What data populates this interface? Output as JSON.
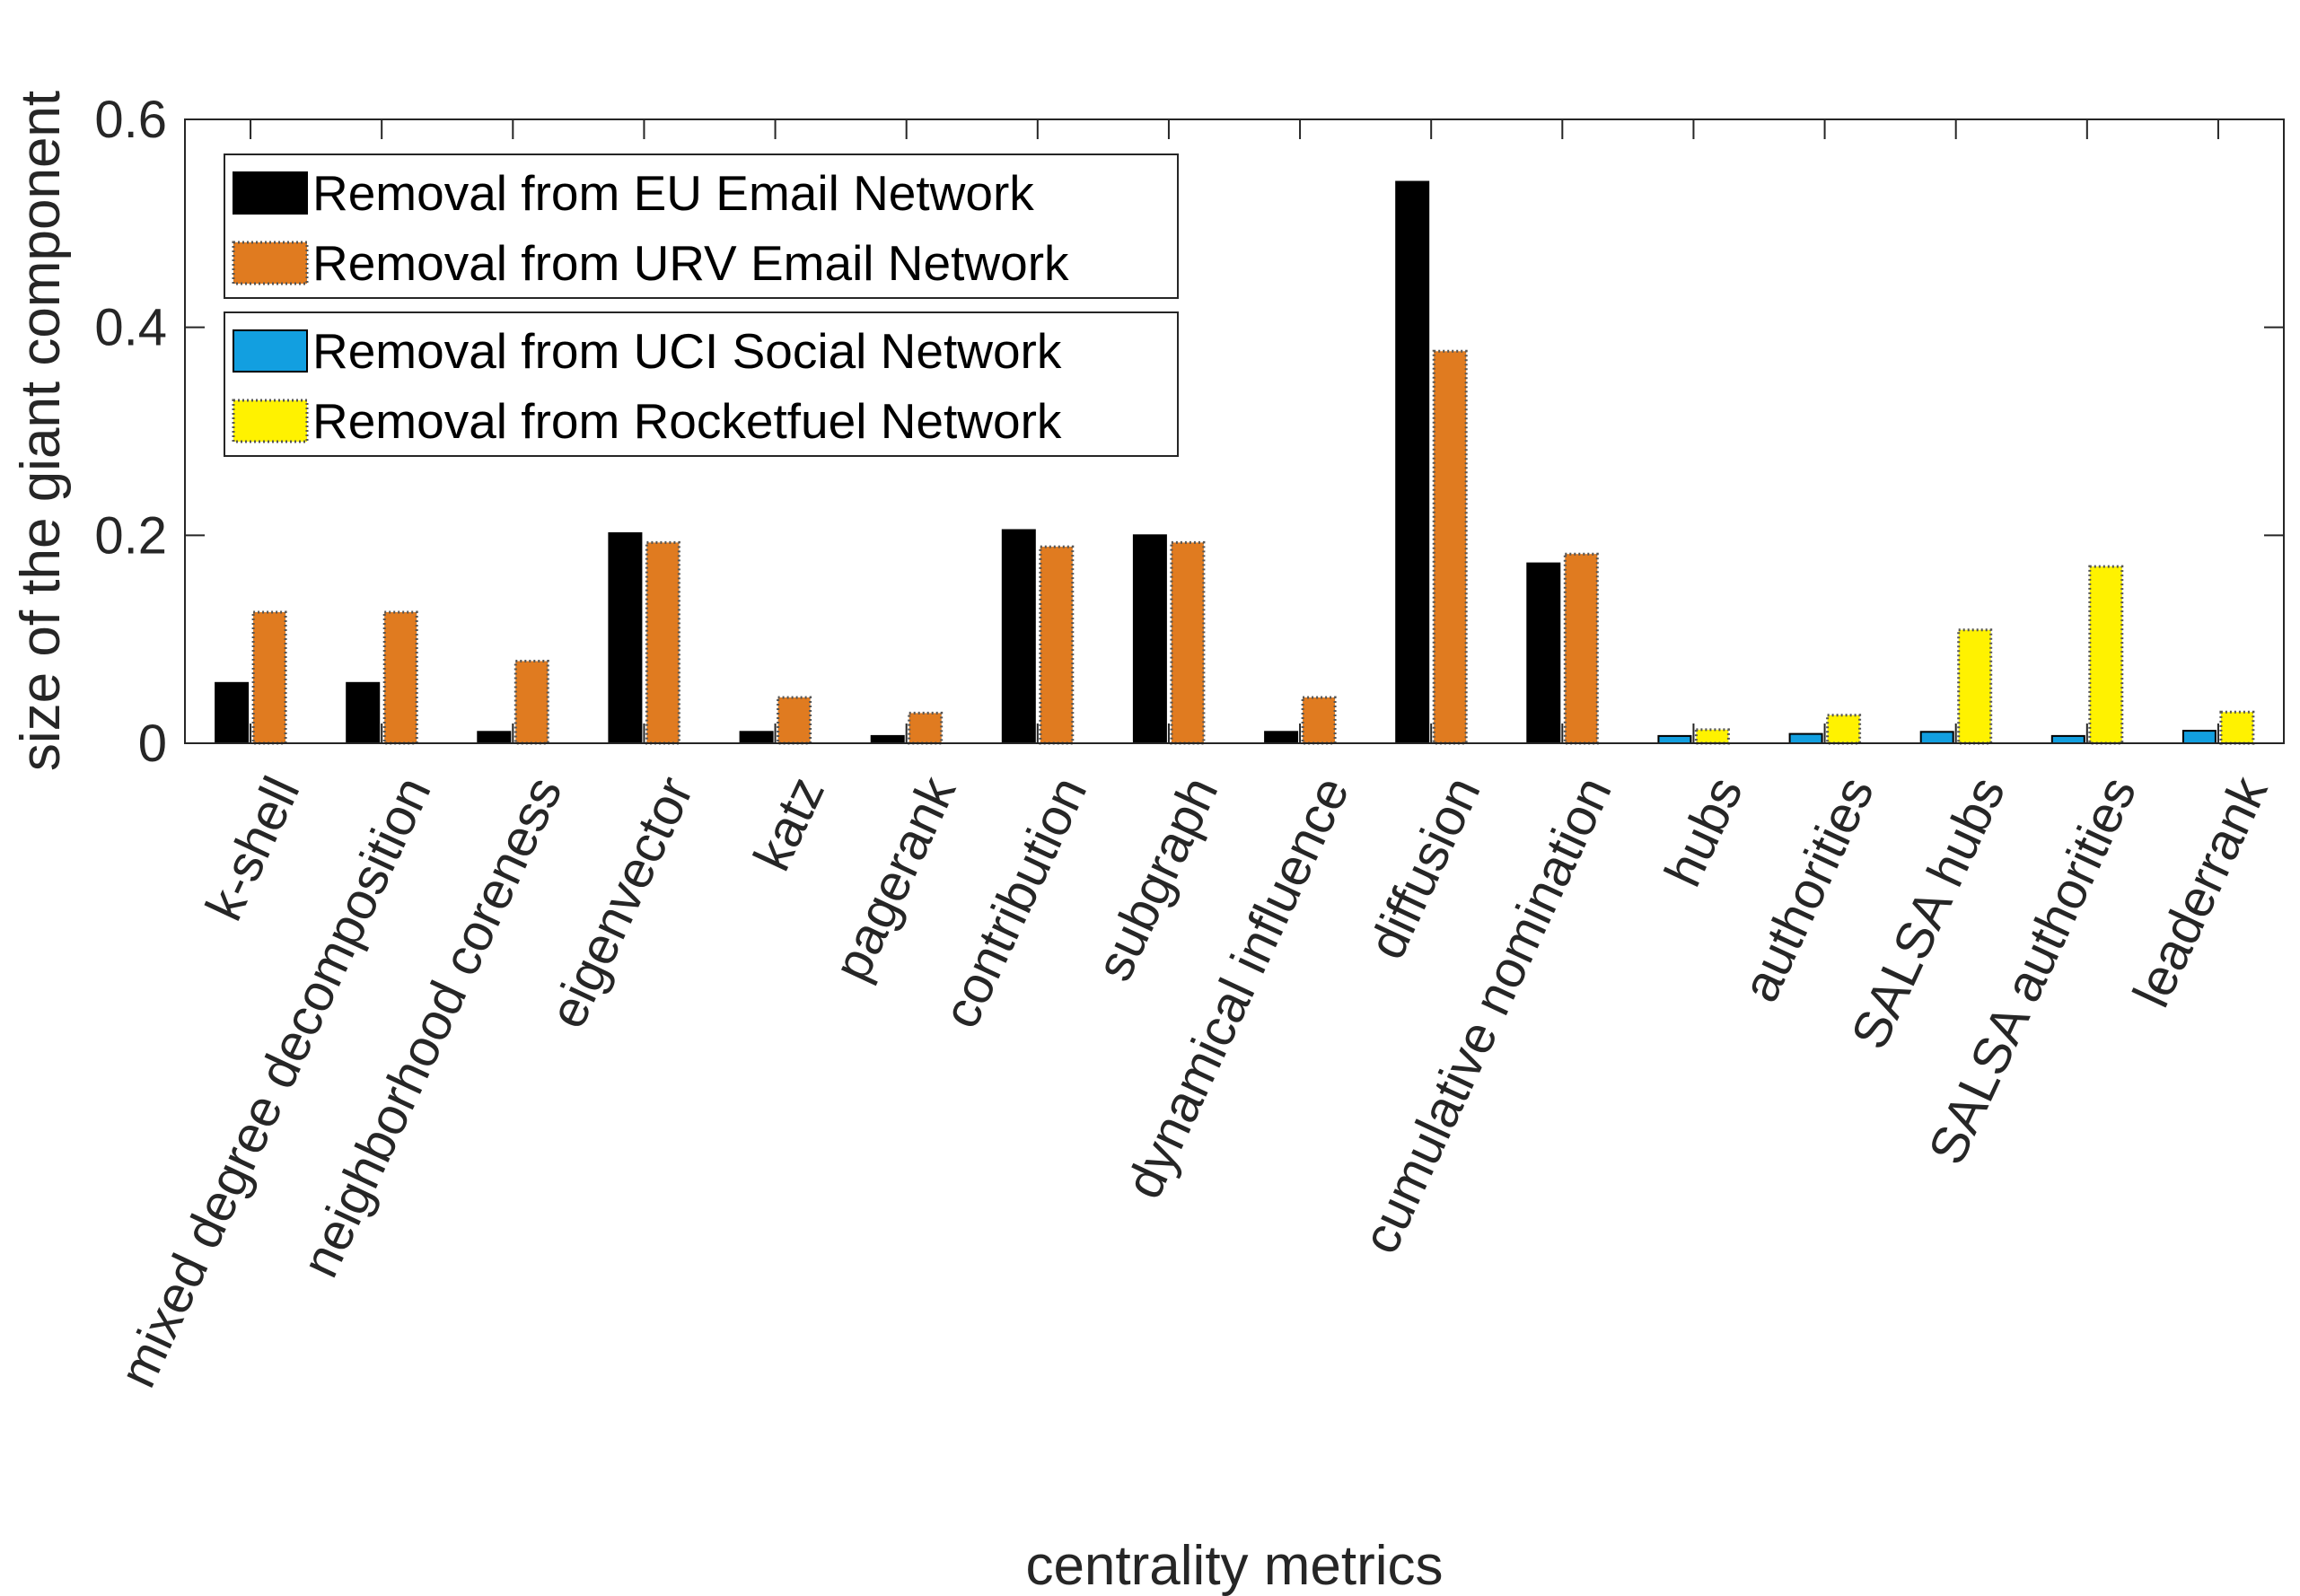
{
  "chart_data": {
    "type": "bar",
    "xlabel": "centrality metrics",
    "ylabel": "size of the giant component",
    "ylim": [
      0,
      0.6
    ],
    "yticks": [
      0,
      0.2,
      0.4,
      0.6
    ],
    "ytick_labels": [
      "0",
      "0.2",
      "0.4",
      "0.6"
    ],
    "grid": false,
    "categories": [
      "k-shell",
      "mixed degree decomposition",
      "neighborhood coreness",
      "eigenvector",
      "katz",
      "pagerank",
      "contribution",
      "subgraph",
      "dynamical influence",
      "diffusion",
      "cumulative nomination",
      "hubs",
      "authorities",
      "SALSA hubs",
      "SALSA authorities",
      "leaderrank"
    ],
    "series": [
      {
        "name": "Removal from EU Email Network",
        "color": "#000000",
        "values": [
          0.058,
          0.058,
          0.011,
          0.202,
          0.011,
          0.007,
          0.205,
          0.2,
          0.011,
          0.54,
          0.173,
          null,
          null,
          null,
          null,
          null
        ]
      },
      {
        "name": "Removal from URV Email Network",
        "color": "#E07B20",
        "values": [
          0.126,
          0.126,
          0.079,
          0.193,
          0.044,
          0.029,
          0.189,
          0.193,
          0.044,
          0.377,
          0.182,
          null,
          null,
          null,
          null,
          null
        ]
      },
      {
        "name": "Removal from UCI Social Network",
        "color": "#129FE0",
        "values": [
          null,
          null,
          null,
          null,
          null,
          null,
          null,
          null,
          null,
          null,
          null,
          0.007,
          0.009,
          0.011,
          0.007,
          0.012
        ]
      },
      {
        "name": "Removal from Rocketfuel Network",
        "color": "#FFF200",
        "values": [
          null,
          null,
          null,
          null,
          null,
          null,
          null,
          null,
          null,
          null,
          null,
          0.013,
          0.027,
          0.109,
          0.17,
          0.03
        ]
      }
    ],
    "legend": {
      "placement": "top-left",
      "groups": [
        [
          0,
          1
        ],
        [
          2,
          3
        ]
      ]
    }
  }
}
